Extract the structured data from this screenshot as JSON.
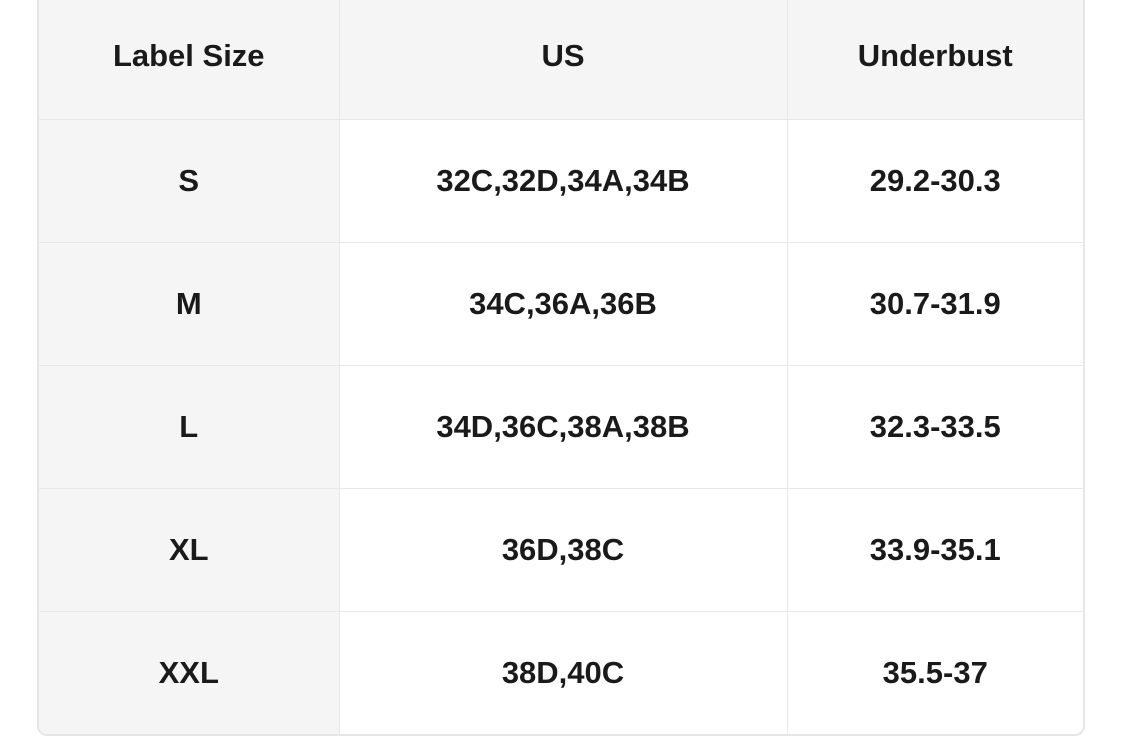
{
  "table": {
    "headers": [
      "Label Size",
      "US",
      "Underbust"
    ],
    "rows": [
      [
        "S",
        "32C,32D,34A,34B",
        "29.2-30.3"
      ],
      [
        "M",
        "34C,36A,36B",
        "30.7-31.9"
      ],
      [
        "L",
        "34D,36C,38A,38B",
        "32.3-33.5"
      ],
      [
        "XL",
        "36D,38C",
        "33.9-35.1"
      ],
      [
        "XXL",
        "38D,40C",
        "35.5-37"
      ]
    ]
  }
}
